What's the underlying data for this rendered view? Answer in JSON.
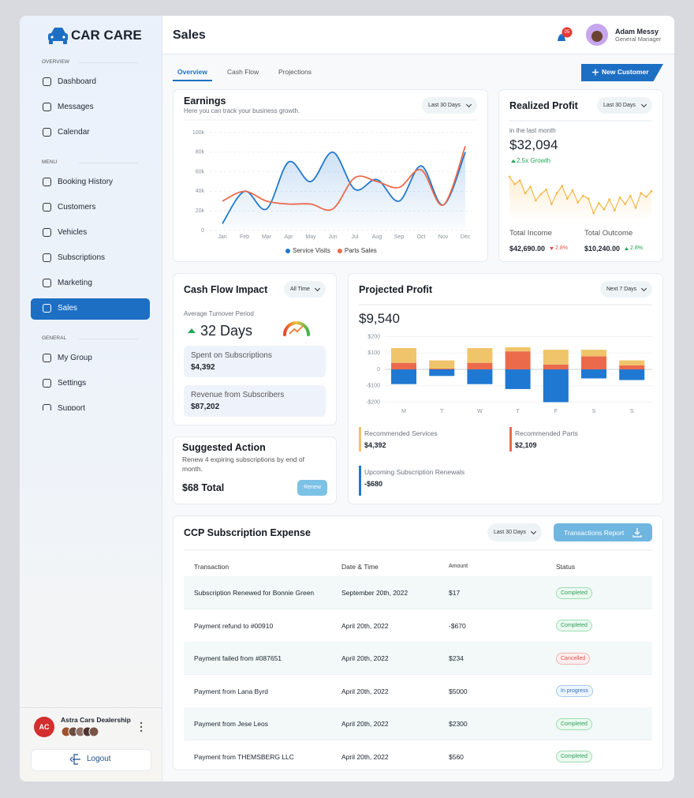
{
  "brand": "CAR CARE",
  "sidebar": {
    "sections": [
      {
        "title": "OVERVIEW",
        "items": [
          "Dashboard",
          "Messages",
          "Calendar"
        ]
      },
      {
        "title": "MENU",
        "items": [
          "Booking History",
          "Customers",
          "Vehicles",
          "Subscriptions",
          "Marketing",
          "Sales"
        ]
      },
      {
        "title": "GENERAL",
        "items": [
          "My Group",
          "Settings",
          "Support"
        ]
      }
    ],
    "active": "Sales",
    "account": {
      "initials": "AC",
      "name": "Astra Cars Dealership"
    },
    "logout": "Logout"
  },
  "header": {
    "title": "Sales",
    "notifications": "05",
    "user": {
      "name": "Adam Messy",
      "role": "General Manager"
    }
  },
  "tabs": {
    "items": [
      "Overview",
      "Cash Flow",
      "Projections"
    ],
    "active": "Overview"
  },
  "new_customer": "New Customer",
  "earnings": {
    "title": "Earnings",
    "subtitle": "Here you can track your business growth.",
    "period": "Last 30 Days",
    "chart": {
      "type": "line",
      "smooth": true,
      "grid": true,
      "categories": [
        "Jan",
        "Feb",
        "Mar",
        "Apr",
        "May",
        "Jun",
        "Jul",
        "Aug",
        "Sep",
        "Oct",
        "Nov",
        "Dec"
      ],
      "series": [
        {
          "name": "Service Visits",
          "color": "#1f78d1",
          "area": true,
          "values": [
            7000,
            40000,
            22000,
            70000,
            50000,
            80000,
            42000,
            52000,
            30000,
            66000,
            26000,
            80000
          ]
        },
        {
          "name": "Parts Sales",
          "color": "#ec6a4c",
          "values": [
            30000,
            40000,
            30000,
            27000,
            27000,
            22000,
            54000,
            50000,
            44000,
            62000,
            26000,
            86000
          ]
        }
      ],
      "ylim": [
        0,
        100000
      ],
      "yticks": [
        0,
        {
          "value": 20000,
          "label": "20k"
        },
        {
          "value": 40000,
          "label": "40k"
        },
        {
          "value": 60000,
          "label": "60k"
        },
        {
          "value": 80000,
          "label": "80k"
        },
        {
          "value": 100000,
          "label": "100k"
        }
      ]
    }
  },
  "realized_profit": {
    "title": "Realized Profit",
    "period": "Last 30 Days",
    "caption": "in the last month",
    "amount": "$32,094",
    "growth": "2.5x Growth",
    "chart": {
      "type": "line",
      "color": "#f5b94a",
      "values": [
        48,
        40,
        44,
        30,
        37,
        22,
        29,
        34,
        18,
        30,
        38,
        24,
        33,
        20,
        27,
        24,
        8,
        19,
        12,
        23,
        11,
        25,
        18,
        27,
        14,
        30,
        26,
        32
      ]
    },
    "totals": [
      {
        "label": "Total Income",
        "amount": "$42,690.00",
        "change": "2.8%",
        "direction": "down"
      },
      {
        "label": "Total Outcome",
        "amount": "$10,240.00",
        "change": "2.8%",
        "direction": "up"
      }
    ]
  },
  "cash_flow": {
    "title": "Cash Flow Impact",
    "period": "All Time",
    "metric_label": "Average Turnover Period",
    "metric": "32 Days",
    "stats": [
      {
        "label": "Spent on Subscriptions",
        "value": "$4,392"
      },
      {
        "label": "Revenue from Subscribers",
        "value": "$87,202"
      }
    ]
  },
  "suggested_action": {
    "title": "Suggested Action",
    "text": "Renew 4 expiring subscriptions by end of month.",
    "total": "$68 Total",
    "button": "Renew"
  },
  "projected_profit": {
    "title": "Projected Profit",
    "period": "Next 7 Days",
    "amount": "$9,540",
    "chart": {
      "type": "stacked-bar",
      "grid": true,
      "categories": [
        "M",
        "T",
        "W",
        "T",
        "F",
        "S",
        "S"
      ],
      "series": [
        {
          "name": "Recommended Services",
          "color": "#f0c46a",
          "total": "$4,392",
          "values": [
            90,
            50,
            90,
            25,
            90,
            40,
            30
          ]
        },
        {
          "name": "Recommended Parts",
          "color": "#ec6a4c",
          "total": "$2,109",
          "values": [
            40,
            5,
            40,
            110,
            30,
            80,
            25
          ]
        },
        {
          "name": "Upcoming Subscription Renewals",
          "color": "#1f78d1",
          "total": "-$680",
          "values": [
            -90,
            -40,
            -90,
            -120,
            -200,
            -55,
            -65
          ]
        }
      ],
      "ylim": [
        -200,
        200
      ],
      "yticks": [
        {
          "value": 200,
          "label": "$200"
        },
        {
          "value": 100,
          "label": "$100"
        },
        0,
        {
          "value": -100,
          "label": "-$100"
        },
        {
          "value": -200,
          "label": "-$200"
        }
      ]
    }
  },
  "subscription_expense": {
    "title": "CCP Subscription Expense",
    "period": "Last 30 Days",
    "button": "Transactions Report",
    "columns": [
      "Transaction",
      "Date & Time",
      "Amount",
      "Status"
    ],
    "rows": [
      {
        "transaction": "Subscription Renewed for Bonnie Green",
        "date": "September 20th, 2022",
        "amount": "$17",
        "status": "Completed",
        "tone": "green"
      },
      {
        "transaction": "Payment refund to #00910",
        "date": "April 20th, 2022",
        "amount": "-$670",
        "status": "Completed",
        "tone": "green"
      },
      {
        "transaction": "Payment failed from #087651",
        "date": "April 20th, 2022",
        "amount": "$234",
        "status": "Cancelled",
        "tone": "red"
      },
      {
        "transaction": "Payment from Lana Byrd",
        "date": "April 20th, 2022",
        "amount": "$5000",
        "status": "In progress",
        "tone": "blue"
      },
      {
        "transaction": "Payment from Jese Leos",
        "date": "April 20th, 2022",
        "amount": "$2300",
        "status": "Completed",
        "tone": "green"
      },
      {
        "transaction": "Payment from THEMSBERG LLC",
        "date": "April 20th, 2022",
        "amount": "$560",
        "status": "Completed",
        "tone": "green"
      }
    ]
  }
}
